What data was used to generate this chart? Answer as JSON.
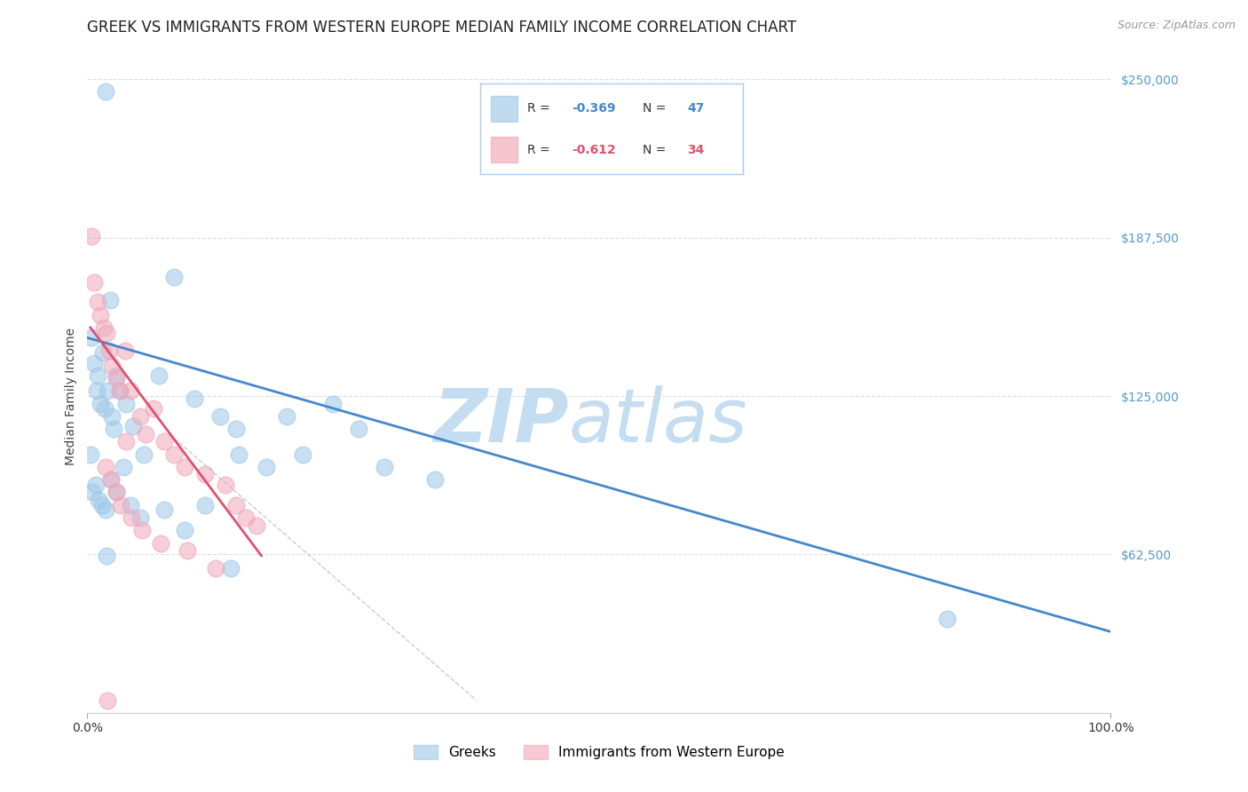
{
  "title": "GREEK VS IMMIGRANTS FROM WESTERN EUROPE MEDIAN FAMILY INCOME CORRELATION CHART",
  "source": "Source: ZipAtlas.com",
  "ylabel": "Median Family Income",
  "yticks": [
    0,
    62500,
    125000,
    187500,
    250000
  ],
  "ytick_labels": [
    "",
    "$62,500",
    "$125,000",
    "$187,500",
    "$250,000"
  ],
  "ymin": 0,
  "ymax": 250000,
  "xmin": 0.0,
  "xmax": 100.0,
  "watermark_zip": "ZIP",
  "watermark_atlas": "atlas",
  "legend_r1_pre": "R = ",
  "legend_r1_val": "-0.369",
  "legend_n1_pre": "   N = ",
  "legend_n1_val": "47",
  "legend_r2_pre": "R = ",
  "legend_r2_val": "-0.612",
  "legend_n2_pre": "   N = ",
  "legend_n2_val": "34",
  "legend_label1": "Greeks",
  "legend_label2": "Immigrants from Western Europe",
  "blue_color": "#9ec8e8",
  "pink_color": "#f0a8b8",
  "trend_blue": "#4488cc",
  "trend_pink": "#e05070",
  "trend_gray": "#cccccc",
  "blue_scatter_x": [
    1.8,
    0.4,
    0.7,
    1.0,
    1.5,
    2.2,
    2.8,
    0.9,
    1.3,
    1.7,
    2.0,
    2.4,
    3.2,
    3.8,
    4.5,
    5.5,
    7.0,
    8.5,
    10.5,
    13.0,
    14.5,
    14.8,
    17.5,
    19.5,
    21.0,
    24.0,
    26.5,
    29.0,
    34.0,
    0.3,
    0.5,
    0.8,
    1.1,
    1.4,
    1.8,
    2.3,
    2.8,
    4.2,
    5.2,
    7.5,
    9.5,
    11.5,
    14.0,
    84.0,
    1.9,
    2.6,
    3.5
  ],
  "blue_scatter_y": [
    245000,
    148000,
    138000,
    133000,
    142000,
    163000,
    133000,
    127000,
    122000,
    120000,
    127000,
    117000,
    127000,
    122000,
    113000,
    102000,
    133000,
    172000,
    124000,
    117000,
    112000,
    102000,
    97000,
    117000,
    102000,
    122000,
    112000,
    97000,
    92000,
    102000,
    87000,
    90000,
    84000,
    82000,
    80000,
    92000,
    87000,
    82000,
    77000,
    80000,
    72000,
    82000,
    57000,
    37000,
    62000,
    112000,
    97000
  ],
  "pink_scatter_x": [
    0.4,
    0.7,
    1.0,
    1.3,
    1.6,
    1.9,
    2.1,
    2.4,
    2.8,
    3.2,
    3.7,
    4.2,
    5.2,
    5.7,
    6.5,
    7.5,
    8.5,
    9.5,
    11.5,
    13.5,
    14.5,
    15.5,
    16.5,
    1.8,
    2.3,
    2.8,
    3.3,
    4.3,
    5.3,
    7.2,
    9.8,
    12.5,
    2.0,
    3.8
  ],
  "pink_scatter_y": [
    188000,
    170000,
    162000,
    157000,
    152000,
    150000,
    143000,
    137000,
    132000,
    127000,
    143000,
    127000,
    117000,
    110000,
    120000,
    107000,
    102000,
    97000,
    94000,
    90000,
    82000,
    77000,
    74000,
    97000,
    92000,
    87000,
    82000,
    77000,
    72000,
    67000,
    64000,
    57000,
    5000,
    107000
  ],
  "blue_line_x": [
    0.0,
    100.0
  ],
  "blue_line_y": [
    148000,
    32000
  ],
  "pink_line_x": [
    0.3,
    17.0
  ],
  "pink_line_y": [
    152000,
    62000
  ],
  "gray_line_x": [
    8.0,
    38.0
  ],
  "gray_line_y": [
    110000,
    5000
  ],
  "background_color": "#ffffff",
  "title_fontsize": 12,
  "source_fontsize": 9,
  "ylabel_fontsize": 10,
  "ytick_fontsize": 10,
  "ytick_color": "#5599cc",
  "watermark_fontsize_zip": 60,
  "watermark_fontsize_atlas": 60,
  "watermark_color": "#c5ddf0",
  "scatter_size": 180
}
